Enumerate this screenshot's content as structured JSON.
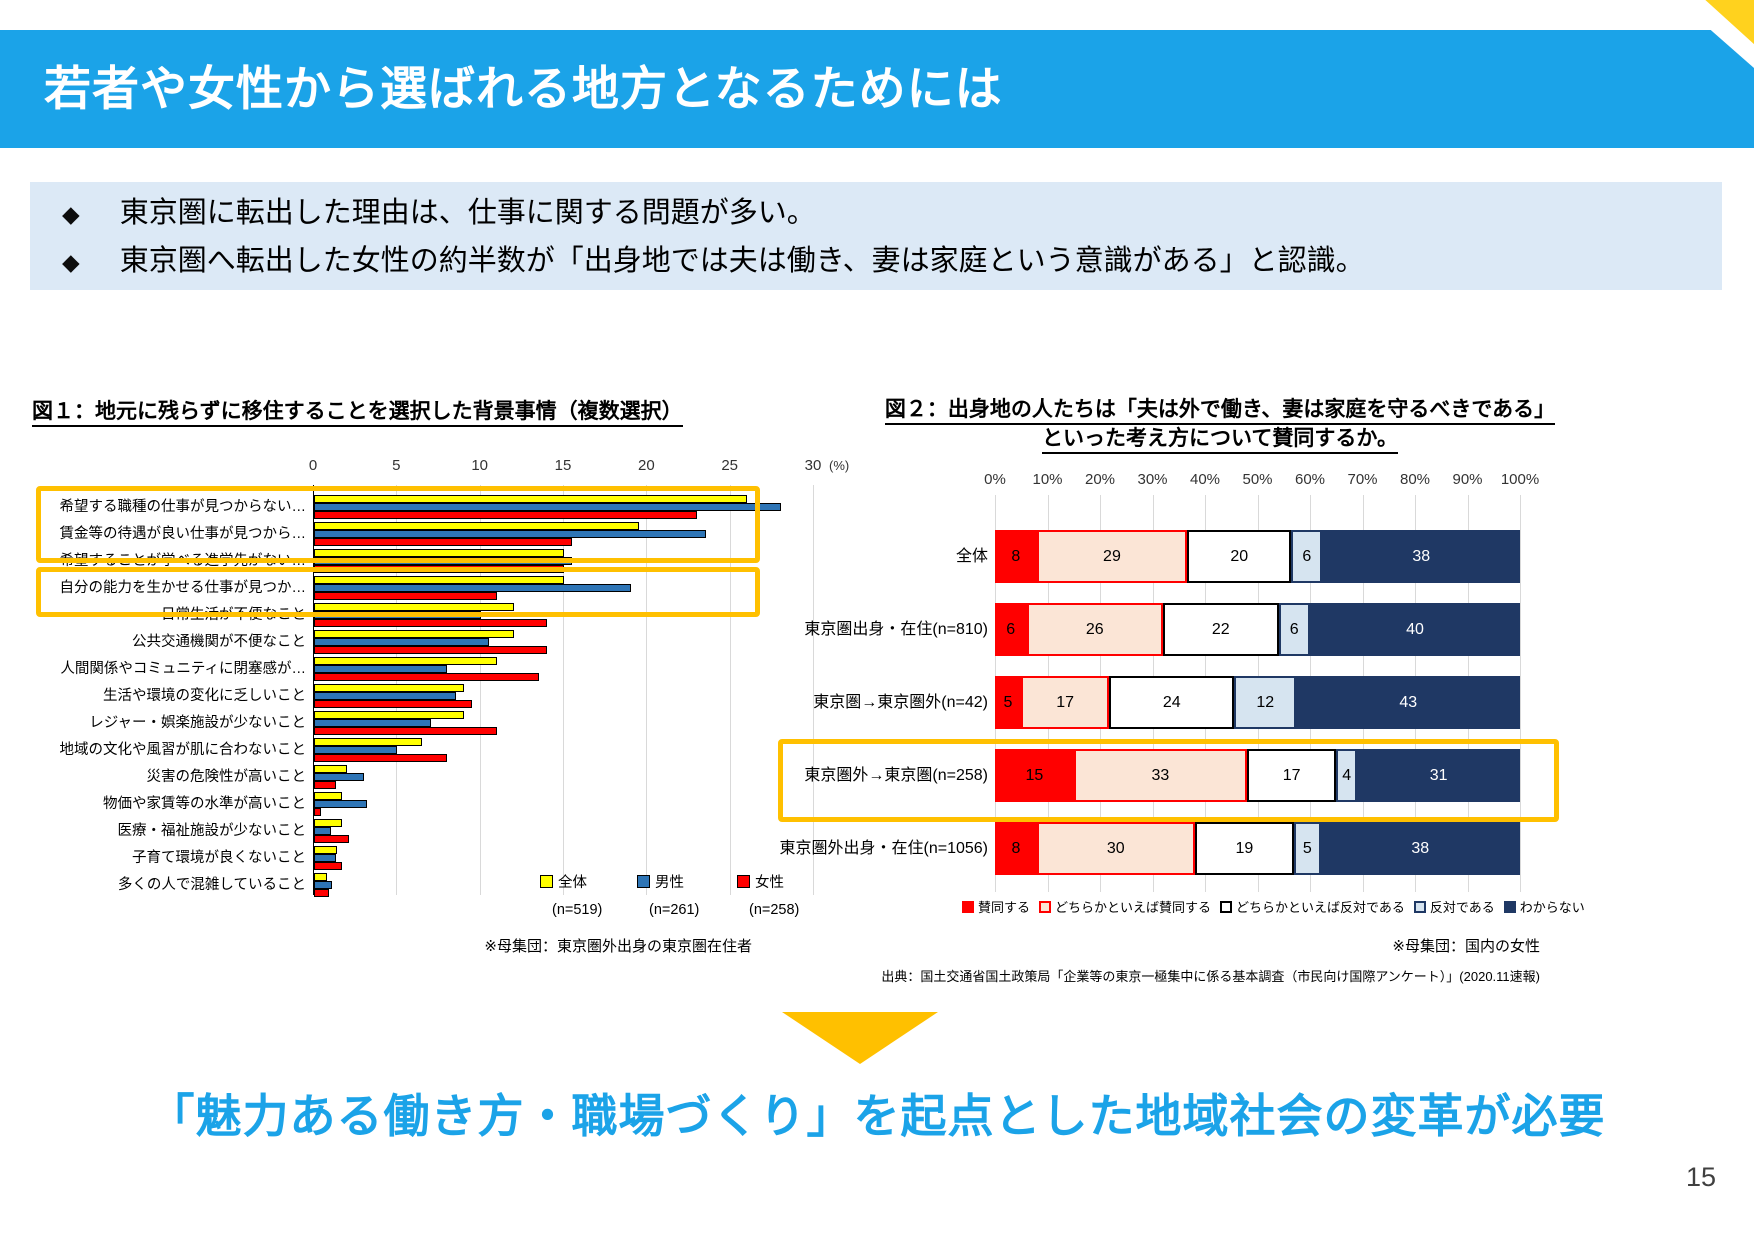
{
  "page_number": "15",
  "header": {
    "title": "若者や女性から選ばれる地方となるためには"
  },
  "summary": {
    "bullets": [
      "東京圏に転出した理由は、仕事に関する問題が多い。",
      "東京圏へ転出した女性の約半数が「出身地では夫は働き、妻は家庭という意識がある」と認識。"
    ],
    "bullet_icon": "◆"
  },
  "fig1": {
    "title": "図１：地元に残らずに移住することを選択した背景事情（複数選択）",
    "footnote": "※母集団：東京圏外出身の東京圏在住者",
    "chart_data": {
      "type": "bar",
      "orientation": "horizontal",
      "x_unit": "(%)",
      "xlim": [
        0,
        30
      ],
      "xticks": [
        0,
        5,
        10,
        15,
        20,
        25,
        30
      ],
      "grid": true,
      "legend_position": "bottom-right",
      "categories": [
        "希望する職種の仕事が見つからない…",
        "賃金等の待遇が良い仕事が見つから…",
        "希望することが学べる進学先がない…",
        "自分の能力を生かせる仕事が見つか…",
        "日常生活が不便なこと",
        "公共交通機関が不便なこと",
        "人間関係やコミュニティに閉塞感が…",
        "生活や環境の変化に乏しいこと",
        "レジャー・娯楽施設が少ないこと",
        "地域の文化や風習が肌に合わないこと",
        "災害の危険性が高いこと",
        "物価や家賃等の水準が高いこと",
        "医療・福祉施設が少ないこと",
        "子育て環境が良くないこと",
        "多くの人で混雑していること"
      ],
      "series": [
        {
          "name": "全体",
          "n": "(n=519)",
          "color": "#FFFF00",
          "values": [
            26,
            19.5,
            15,
            15,
            12,
            12,
            11,
            9,
            9,
            6.5,
            2,
            1.7,
            1.7,
            1.4,
            0.8
          ]
        },
        {
          "name": "男性",
          "n": "(n=261)",
          "color": "#2E75B6",
          "values": [
            28,
            23.5,
            15.5,
            19,
            10,
            10.5,
            8,
            8.5,
            7,
            5,
            3,
            3.2,
            1,
            1.3,
            1.1
          ]
        },
        {
          "name": "女性",
          "n": "(n=258)",
          "color": "#FF0000",
          "values": [
            23,
            15.5,
            15,
            11,
            14,
            14,
            13.5,
            9.5,
            11,
            8,
            1.3,
            0.4,
            2.1,
            1.7,
            0.9
          ]
        }
      ],
      "highlighted_categories": [
        [
          0,
          1
        ],
        [
          3,
          3
        ]
      ]
    }
  },
  "fig2": {
    "title_line1": "図２：出身地の人たちは「夫は外で働き、妻は家庭を守るべきである」",
    "title_line2": "といった考え方について賛同するか。",
    "footnote": "※母集団：国内の女性",
    "source": "出典：国土交通省国土政策局「企業等の東京一極集中に係る基本調査（市民向け国際アンケート）」(2020.11速報)",
    "chart_data": {
      "type": "stacked-bar",
      "orientation": "horizontal",
      "xlim": [
        0,
        100
      ],
      "xticks": [
        "0%",
        "10%",
        "20%",
        "30%",
        "40%",
        "50%",
        "60%",
        "70%",
        "80%",
        "90%",
        "100%"
      ],
      "grid": true,
      "legend_position": "bottom",
      "segments": [
        {
          "name": "賛同する",
          "fill": "#FF0000",
          "border": "#FF0000",
          "text_color": "#000000"
        },
        {
          "name": "どちらかといえば賛同する",
          "fill": "#FBE5D6",
          "border": "#FF0000",
          "text_color": "#000000"
        },
        {
          "name": "どちらかといえば反対である",
          "fill": "#FFFFFF",
          "border": "#000000",
          "text_color": "#000000"
        },
        {
          "name": "反対である",
          "fill": "#D6E4F0",
          "border": "#1F3864",
          "text_color": "#000000"
        },
        {
          "name": "わからない",
          "fill": "#1F3864",
          "border": "#1F3864",
          "text_color": "#FFFFFF"
        }
      ],
      "rows": [
        {
          "label": "全体",
          "values": [
            8,
            29,
            20,
            6,
            38
          ]
        },
        {
          "label": "東京圏出身・在住(n=810)",
          "values": [
            6,
            26,
            22,
            6,
            40
          ]
        },
        {
          "label": "東京圏→東京圏外(n=42)",
          "values": [
            5,
            17,
            24,
            12,
            43
          ]
        },
        {
          "label": "東京圏外→東京圏(n=258)",
          "values": [
            15,
            33,
            17,
            4,
            31
          ]
        },
        {
          "label": "東京圏外出身・在住(n=1056)",
          "values": [
            8,
            30,
            19,
            5,
            38
          ]
        }
      ],
      "highlighted_row": 3
    }
  },
  "conclusion": {
    "text": "「魅力ある働き方・職場づくり」を起点とした地域社会の変革が必要"
  },
  "colors": {
    "header_blue": "#1BA3E8",
    "accent_orange": "#FFC000",
    "corner_yellow": "#FFD21E",
    "summary_bg": "#DCE9F6",
    "navy": "#1F3864",
    "gridline": "#D9D9D9"
  }
}
